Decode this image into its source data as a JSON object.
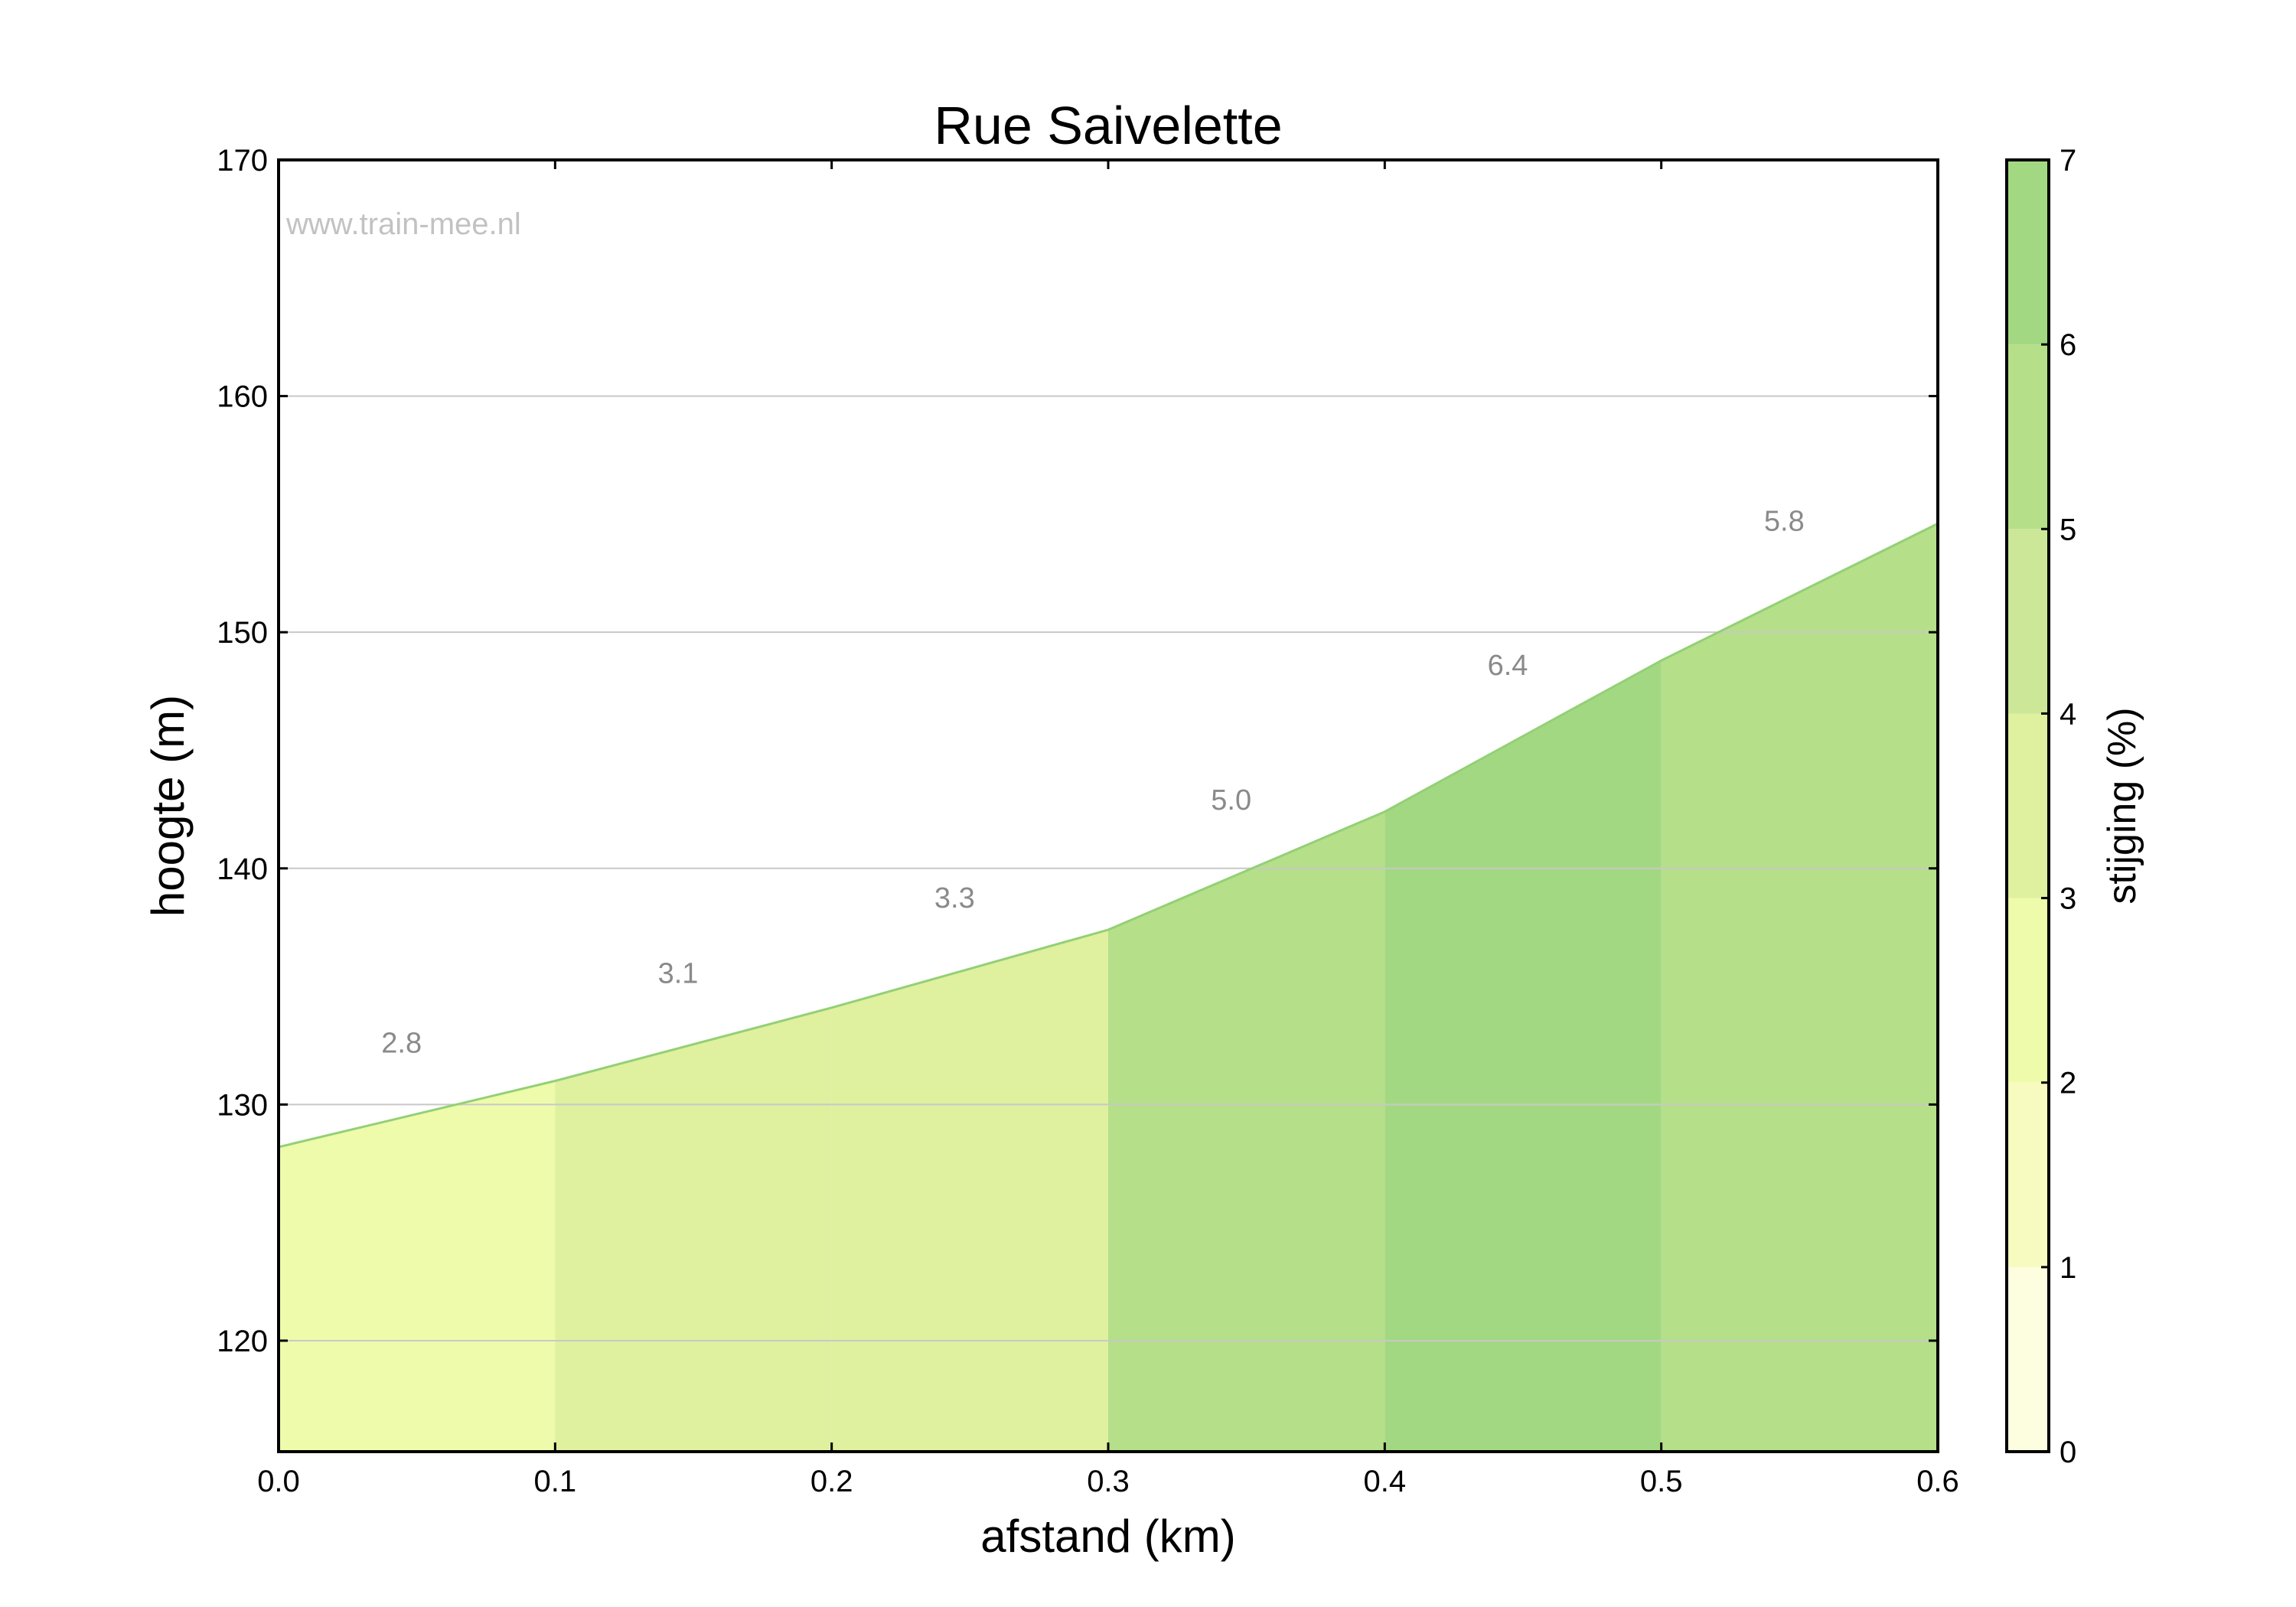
{
  "chart_data": {
    "type": "area",
    "title": "Rue Saivelette",
    "watermark": "www.train-mee.nl",
    "xlabel": "afstand (km)",
    "ylabel": "hoogte (m)",
    "xlim": [
      0.0,
      0.6
    ],
    "ylim": [
      115.3,
      170
    ],
    "x_ticks": [
      "0.0",
      "0.1",
      "0.2",
      "0.3",
      "0.4",
      "0.5",
      "0.6"
    ],
    "y_ticks": [
      "120",
      "130",
      "140",
      "150",
      "160",
      "170"
    ],
    "grid": "horizontal",
    "profile": {
      "x": [
        0.0,
        0.1,
        0.2,
        0.3,
        0.4,
        0.5,
        0.6
      ],
      "y": [
        128.2,
        131.0,
        134.1,
        137.4,
        142.4,
        148.8,
        154.6
      ]
    },
    "segments": [
      {
        "x0": 0.0,
        "x1": 0.1,
        "grade": "2.8"
      },
      {
        "x0": 0.1,
        "x1": 0.2,
        "grade": "3.1"
      },
      {
        "x0": 0.2,
        "x1": 0.3,
        "grade": "3.3"
      },
      {
        "x0": 0.3,
        "x1": 0.4,
        "grade": "5.0"
      },
      {
        "x0": 0.4,
        "x1": 0.5,
        "grade": "6.4"
      },
      {
        "x0": 0.5,
        "x1": 0.6,
        "grade": "5.8"
      }
    ],
    "colorbar": {
      "label": "stijging (%)",
      "ticks": [
        "0",
        "1",
        "2",
        "3",
        "4",
        "5",
        "6",
        "7"
      ],
      "range": [
        0,
        7
      ],
      "colors": [
        "#fdfde0",
        "#f7fbbf",
        "#eefbab",
        "#dff09f",
        "#cbe797",
        "#b5df89",
        "#a3d883"
      ]
    },
    "colors": {
      "line": "#93d076",
      "grid": "#c8c8c8"
    }
  }
}
